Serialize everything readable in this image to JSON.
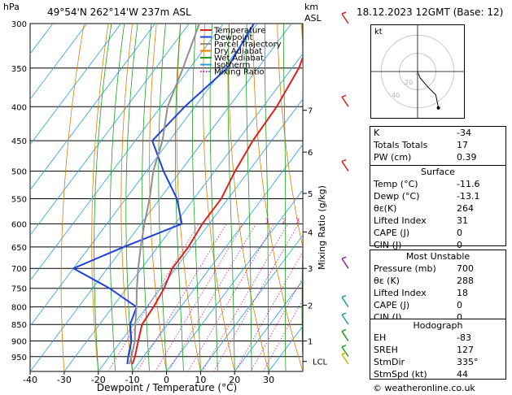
{
  "header": {
    "hpa_label": "hPa",
    "location": "49°54'N  262°14'W  237m  ASL",
    "km_label": "km",
    "asl_label": "ASL",
    "datetime": "18.12.2023  12GMT  (Base: 12)"
  },
  "legend": [
    {
      "label": "Temperature",
      "color": "#e02020"
    },
    {
      "label": "Dewpoint",
      "color": "#2040e0"
    },
    {
      "label": "Parcel Trajectory",
      "color": "#909090"
    },
    {
      "label": "Dry Adiabat",
      "color": "#e08000"
    },
    {
      "label": "Wet Adiabat",
      "color": "#20a020"
    },
    {
      "label": "Isotherm",
      "color": "#20a0e0"
    },
    {
      "label": "Mixing Ratio",
      "color": "#d020a0"
    }
  ],
  "chart_data": {
    "type": "line",
    "title": "Skew-T log-P sounding",
    "xlabel": "Dewpoint / Temperature (°C)",
    "ylabel": "hPa",
    "y2label": "Mixing Ratio (g/kg)",
    "xlim": [
      -40,
      40
    ],
    "ylim_hpa": [
      300,
      1000
    ],
    "x_ticks": [
      "-40",
      "-30",
      "-20",
      "-10",
      "0",
      "10",
      "20",
      "30"
    ],
    "pressure_levels": [
      300,
      350,
      400,
      450,
      500,
      550,
      600,
      650,
      700,
      750,
      800,
      850,
      900,
      950
    ],
    "km_ticks": [
      {
        "p": 405,
        "label": "7"
      },
      {
        "p": 468,
        "label": "6"
      },
      {
        "p": 540,
        "label": "5"
      },
      {
        "p": 617,
        "label": "4"
      },
      {
        "p": 700,
        "label": "3"
      },
      {
        "p": 795,
        "label": "2"
      },
      {
        "p": 900,
        "label": "1"
      },
      {
        "p": 966,
        "label": "LCL"
      }
    ],
    "mixing_ratio_labels": [
      {
        "value": "1",
        "t": -3
      },
      {
        "value": "2",
        "t": 2
      },
      {
        "value": "3",
        "t": 6
      },
      {
        "value": "4",
        "t": 9
      },
      {
        "value": "6",
        "t": 14
      },
      {
        "value": "8",
        "t": 18
      },
      {
        "value": "10",
        "t": 22
      },
      {
        "value": "15",
        "t": 28
      },
      {
        "value": "20",
        "t": 33
      },
      {
        "value": "25",
        "t": 36
      }
    ],
    "series": [
      {
        "name": "Temperature",
        "points": [
          [
            300,
            -33
          ],
          [
            350,
            -28
          ],
          [
            400,
            -26
          ],
          [
            450,
            -25.5
          ],
          [
            500,
            -24
          ],
          [
            550,
            -22
          ],
          [
            600,
            -22
          ],
          [
            650,
            -21
          ],
          [
            700,
            -21
          ],
          [
            750,
            -19
          ],
          [
            800,
            -18
          ],
          [
            850,
            -17.5
          ],
          [
            900,
            -15
          ],
          [
            950,
            -12.5
          ],
          [
            975,
            -11.6
          ]
        ]
      },
      {
        "name": "Dewpoint",
        "points": [
          [
            300,
            -51
          ],
          [
            350,
            -49
          ],
          [
            400,
            -53
          ],
          [
            450,
            -55
          ],
          [
            500,
            -45
          ],
          [
            550,
            -35
          ],
          [
            600,
            -28
          ],
          [
            650,
            -40
          ],
          [
            700,
            -50
          ],
          [
            750,
            -35
          ],
          [
            800,
            -23
          ],
          [
            850,
            -21
          ],
          [
            900,
            -17
          ],
          [
            950,
            -14.5
          ],
          [
            975,
            -13.1
          ]
        ]
      },
      {
        "name": "Parcel Trajectory",
        "points": [
          [
            300,
            -67
          ],
          [
            350,
            -62
          ],
          [
            400,
            -58
          ],
          [
            450,
            -52
          ],
          [
            500,
            -48
          ],
          [
            550,
            -43
          ],
          [
            600,
            -39
          ],
          [
            650,
            -35
          ],
          [
            700,
            -31
          ],
          [
            750,
            -27
          ],
          [
            800,
            -23
          ],
          [
            850,
            -19.5
          ],
          [
            900,
            -16
          ],
          [
            950,
            -13.5
          ],
          [
            975,
            -12.5
          ]
        ]
      }
    ]
  },
  "wind_barbs_hpa": [
    300,
    400,
    500,
    700,
    800,
    850,
    900,
    950,
    975
  ],
  "hodograph": {
    "label": "kt",
    "ring_labels": [
      "20",
      "40"
    ],
    "trace_kt": [
      [
        0,
        0
      ],
      [
        2,
        -5
      ],
      [
        8,
        -12
      ],
      [
        14,
        -18
      ],
      [
        16,
        -28
      ]
    ],
    "storm_motion": [
      0,
      -2
    ]
  },
  "indices": [
    {
      "label": "K",
      "value": "-34"
    },
    {
      "label": "Totals Totals",
      "value": "17"
    },
    {
      "label": "PW (cm)",
      "value": "0.39"
    }
  ],
  "surface": {
    "title": "Surface",
    "rows": [
      {
        "label": "Temp (°C)",
        "value": "-11.6"
      },
      {
        "label": "Dewp (°C)",
        "value": "-13.1"
      },
      {
        "label": "θε(K)",
        "value": "264"
      },
      {
        "label": "Lifted Index",
        "value": "31"
      },
      {
        "label": "CAPE (J)",
        "value": "0"
      },
      {
        "label": "CIN (J)",
        "value": "0"
      }
    ]
  },
  "most_unstable": {
    "title": "Most Unstable",
    "rows": [
      {
        "label": "Pressure (mb)",
        "value": "700"
      },
      {
        "label": "θε (K)",
        "value": "288"
      },
      {
        "label": "Lifted Index",
        "value": "18"
      },
      {
        "label": "CAPE (J)",
        "value": "0"
      },
      {
        "label": "CIN (J)",
        "value": "0"
      }
    ]
  },
  "hodograph_table": {
    "title": "Hodograph",
    "rows": [
      {
        "label": "EH",
        "value": "-83"
      },
      {
        "label": "SREH",
        "value": "127"
      },
      {
        "label": "StmDir",
        "value": "335°"
      },
      {
        "label": "StmSpd (kt)",
        "value": "44"
      }
    ]
  },
  "copyright": "© weatheronline.co.uk"
}
